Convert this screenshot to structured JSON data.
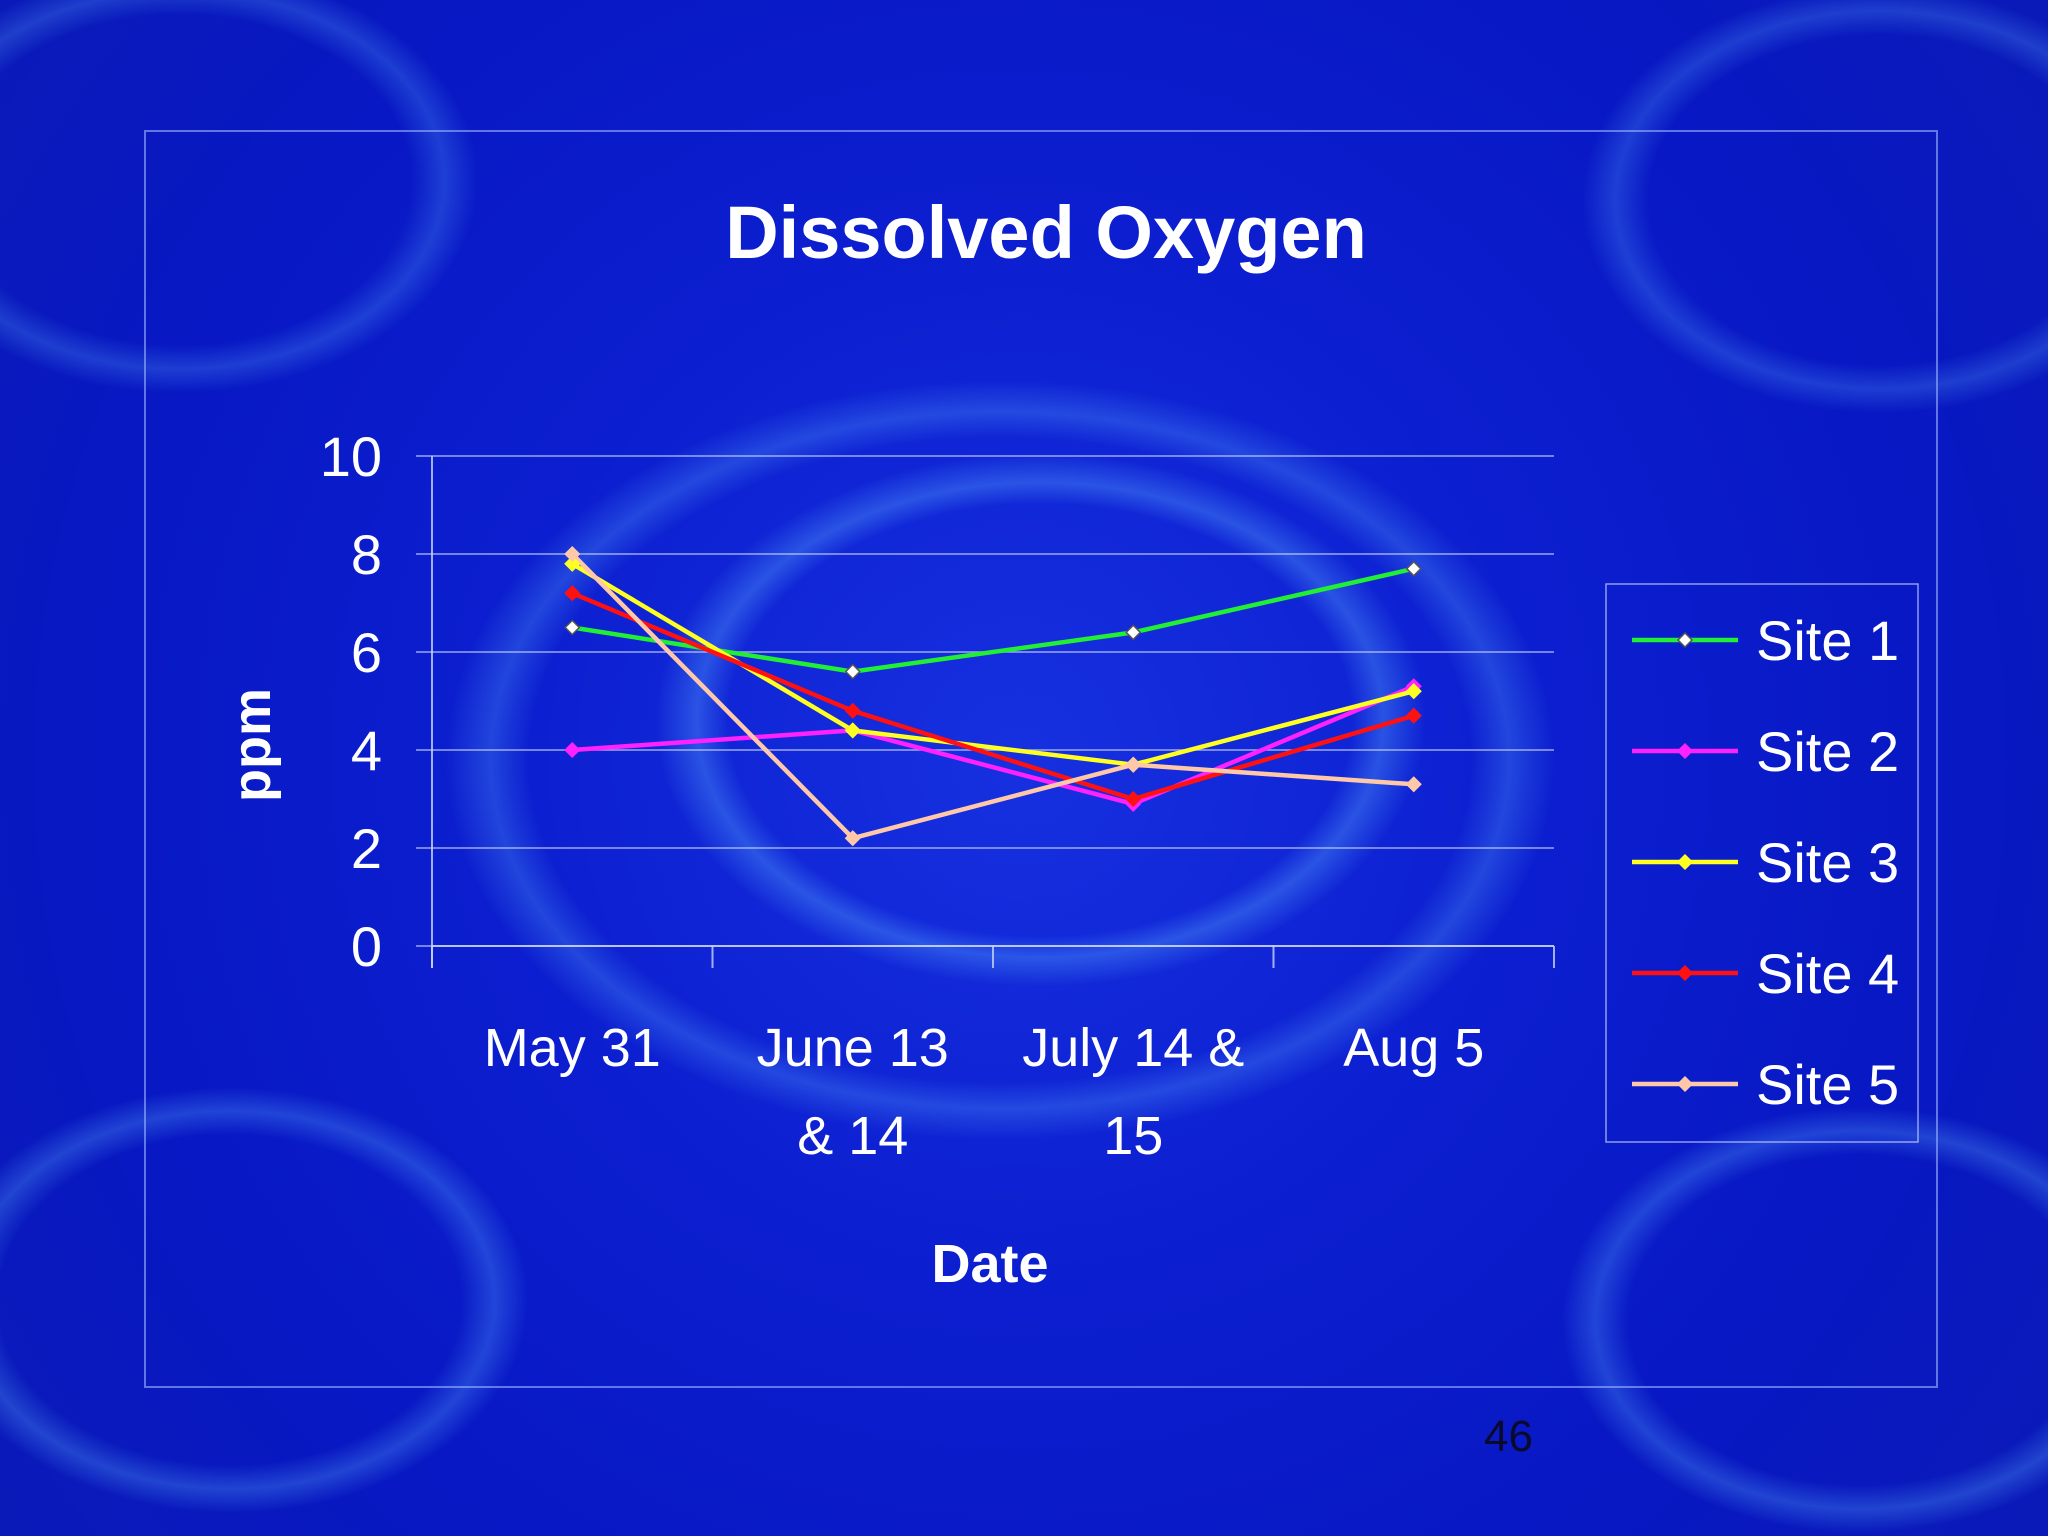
{
  "page": {
    "number": "46"
  },
  "colors": {
    "background": "#0c1fd0",
    "text": "#ffffff",
    "grid": "#c8d4ff"
  },
  "chart_data": {
    "type": "line",
    "title": "Dissolved Oxygen",
    "xlabel": "Date",
    "ylabel": "ppm",
    "categories": [
      [
        "May 31"
      ],
      [
        "June 13",
        "& 14"
      ],
      [
        "July 14 &",
        "15"
      ],
      [
        "Aug 5"
      ]
    ],
    "ylim": [
      0,
      10
    ],
    "yticks": [
      "0",
      "2",
      "4",
      "6",
      "8",
      "10"
    ],
    "grid": true,
    "legend_position": "right",
    "series": [
      {
        "name": "Site 1",
        "color": "#22ee33",
        "values": [
          6.5,
          5.6,
          6.4,
          7.7
        ]
      },
      {
        "name": "Site 2",
        "color": "#ff22ff",
        "values": [
          4.0,
          4.4,
          2.9,
          5.3
        ]
      },
      {
        "name": "Site 3",
        "color": "#ffff22",
        "values": [
          7.8,
          4.4,
          3.7,
          5.2
        ]
      },
      {
        "name": "Site 4",
        "color": "#ff1111",
        "values": [
          7.2,
          4.8,
          3.0,
          4.7
        ]
      },
      {
        "name": "Site 5",
        "color": "#ffc8a8",
        "values": [
          8.0,
          2.2,
          3.7,
          3.3
        ]
      }
    ]
  }
}
